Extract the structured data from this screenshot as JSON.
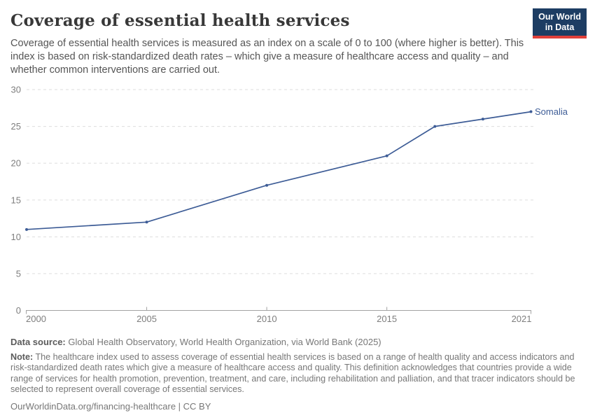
{
  "header": {
    "title": "Coverage of essential health services",
    "subtitle": "Coverage of essential health services is measured as an index on a scale of 0 to 100 (where higher is better). This index is based on risk-standardized death rates – which give a measure of healthcare access and quality – and whether common interventions are carried out.",
    "logo": {
      "line1": "Our World",
      "line2": "in Data",
      "background_color": "#1d3d63",
      "accent_color": "#e0403a"
    }
  },
  "chart_data": {
    "type": "line",
    "title": "Coverage of essential health services",
    "xlabel": "",
    "ylabel": "",
    "xlim": [
      2000,
      2021
    ],
    "ylim": [
      0,
      30
    ],
    "xticks": [
      2000,
      2005,
      2010,
      2015,
      2021
    ],
    "yticks": [
      0,
      5,
      10,
      15,
      20,
      25,
      30
    ],
    "grid": "horizontal-dashed",
    "legend_position": "end-of-line",
    "series": [
      {
        "name": "Somalia",
        "color": "#3d5c96",
        "x": [
          2000,
          2005,
          2010,
          2015,
          2017,
          2019,
          2021
        ],
        "values": [
          11,
          12,
          17,
          21,
          25,
          26,
          27
        ]
      }
    ]
  },
  "footer": {
    "source_label": "Data source:",
    "source_text": " Global Health Observatory, World Health Organization, via World Bank (2025)",
    "note_label": "Note:",
    "note_text": " The healthcare index used to assess coverage of essential health services is based on a range of health quality and access indicators and risk-standardized death rates which give a measure of healthcare access and quality. This definition acknowledges that countries provide a wide range of services for health promotion, prevention, treatment, and care, including rehabilitation and palliation, and that tracer indicators should be selected to represent overall coverage of essential services.",
    "url_text": "OurWorldinData.org/financing-healthcare",
    "separator": " | ",
    "license": "CC BY"
  }
}
